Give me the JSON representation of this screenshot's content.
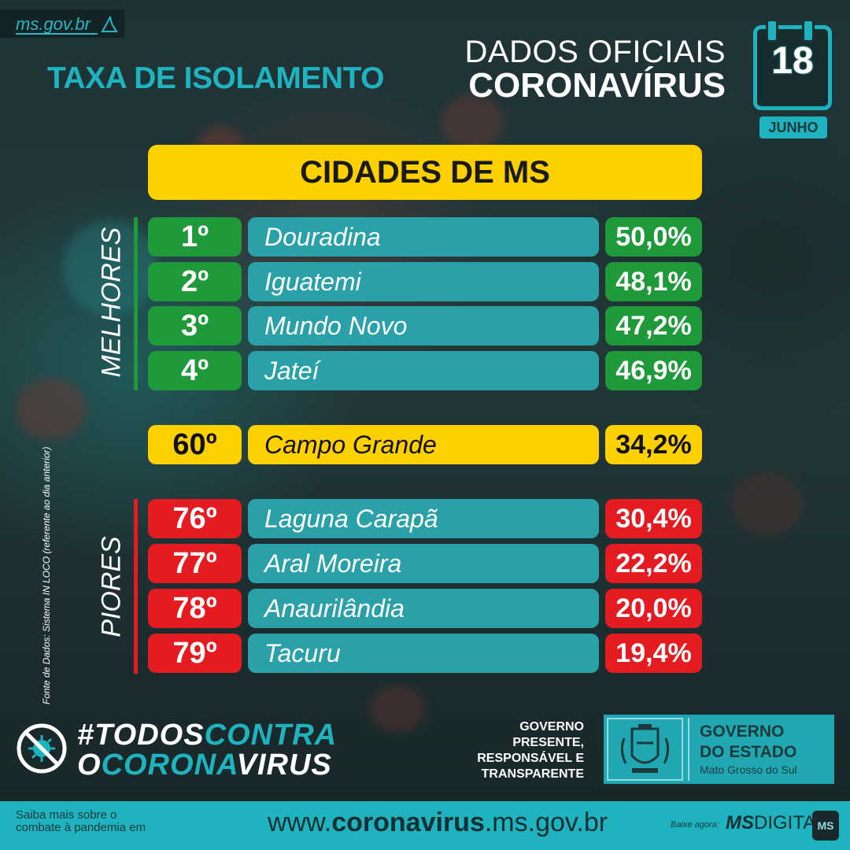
{
  "site_tag": "ms.gov.br",
  "header": {
    "title": "TAXA DE ISOLAMENTO",
    "official_line1": "DADOS OFICIAIS",
    "official_line2": "CORONAVÍRUS",
    "calendar_day": "18",
    "calendar_month": "JUNHO"
  },
  "banner": "CIDADES DE MS",
  "groups": {
    "best_label": "MELHORES",
    "worst_label": "PIORES"
  },
  "best": [
    {
      "rank": "1º",
      "city": "Douradina",
      "rate": "50,0%"
    },
    {
      "rank": "2º",
      "city": "Iguatemi",
      "rate": "48,1%"
    },
    {
      "rank": "3º",
      "city": "Mundo Novo",
      "rate": "47,2%"
    },
    {
      "rank": "4º",
      "city": "Jateí",
      "rate": "46,9%"
    }
  ],
  "highlight": {
    "rank": "60º",
    "city": "Campo Grande",
    "rate": "34,2%"
  },
  "worst": [
    {
      "rank": "76º",
      "city": "Laguna Carapã",
      "rate": "30,4%"
    },
    {
      "rank": "77º",
      "city": "Aral Moreira",
      "rate": "22,2%"
    },
    {
      "rank": "78º",
      "city": "Anaurilândia",
      "rate": "20,0%"
    },
    {
      "rank": "79º",
      "city": "Tacuru",
      "rate": "19,4%"
    }
  ],
  "source_note": "Fonte de Dados: Sistema IN LOCO (referente ao dia anterior)",
  "hashtag": {
    "line1_a": "#TODOS",
    "line1_b": "CONTRA",
    "line2_a": "O",
    "line2_b": "CORONA",
    "line2_c": "VIRUS"
  },
  "government": {
    "motto_1": "GOVERNO",
    "motto_2": "PRESENTE,",
    "motto_3": "RESPONSÁVEL E",
    "motto_4": "TRANSPARENTE",
    "title_1": "GOVERNO",
    "title_2": "DO ESTADO",
    "subtitle": "Mato Grosso do Sul"
  },
  "footer": {
    "left_1": "Saiba mais sobre o",
    "left_2": "combate à pandemia em",
    "url_a": "www.",
    "url_b": "coronavirus",
    "url_c": ".ms.gov.br",
    "download": "Baixe agora:",
    "app_a": "MS",
    "app_b": "DIGITAL",
    "app_icon": "MS"
  },
  "colors": {
    "accent": "#1fb3bf",
    "good": "#1e9a3b",
    "bad": "#e41c22",
    "highlight": "#fdd000",
    "city_bar": "#2aa1a9"
  }
}
